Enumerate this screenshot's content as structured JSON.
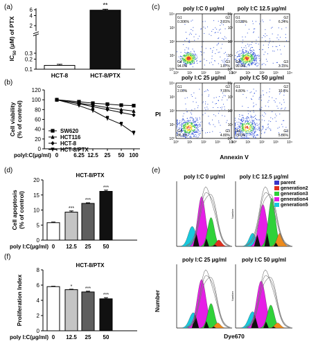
{
  "panels": {
    "a": {
      "letter": "(a)"
    },
    "b": {
      "letter": "(b)"
    },
    "c": {
      "letter": "(c)"
    },
    "d": {
      "letter": "(d)"
    },
    "e": {
      "letter": "(e)"
    },
    "f": {
      "letter": "(f)"
    }
  },
  "colors": {
    "dot_blue": "#2a4ed8",
    "dot_green": "#3fc34a",
    "dot_yellow": "#f2e82a",
    "dot_red": "#e23a2a",
    "gray_bar": "#c4c4c4",
    "dark_bar": "#5e5e5e",
    "black": "#111111",
    "purple": "#3a35c8",
    "red_hist": "#e0301f",
    "magenta": "#e61ee6",
    "green": "#2fd13a",
    "orange": "#ee8b1c",
    "cyan": "#17c9dd"
  },
  "chart_data": [
    {
      "panel": "a",
      "type": "bar",
      "categories": [
        "HCT-8",
        "HCT-8/PTX"
      ],
      "values": [
        0.13,
        5.8
      ],
      "error": [
        0.01,
        0.4
      ],
      "fills": [
        "#ffffff",
        "#111111"
      ],
      "significance": [
        "",
        "**"
      ],
      "ylabel_parts": {
        "pre": "IC",
        "sub": "50",
        "post": " (μM) of PTX"
      },
      "yscale": "log",
      "yticks": [
        "0.1",
        "0.2",
        "0.3",
        "2",
        "4",
        "6"
      ],
      "ylim": [
        0.1,
        6.6
      ]
    },
    {
      "panel": "b",
      "type": "line",
      "x": [
        "0",
        "6.25",
        "12.5",
        "25",
        "50",
        "100"
      ],
      "xlabel": "polyI:C(μg/ml)",
      "ylabel": [
        "Cell viability",
        "(% of control)"
      ],
      "ylim": [
        0,
        120
      ],
      "yticks": [
        "0",
        "20",
        "40",
        "60",
        "80",
        "100",
        "120"
      ],
      "series": [
        {
          "name": "SW620",
          "marker": "square",
          "values": [
            100,
            96,
            93,
            91,
            89,
            88
          ]
        },
        {
          "name": "HCT116",
          "marker": "triangle-up",
          "values": [
            100,
            93,
            89,
            84,
            80,
            77
          ]
        },
        {
          "name": "HCT-8",
          "marker": "diamond",
          "values": [
            100,
            92,
            86,
            80,
            74,
            69
          ]
        },
        {
          "name": "HCT-8/PTX",
          "marker": "triangle-down",
          "values": [
            100,
            88,
            78,
            62,
            50,
            32
          ]
        }
      ],
      "legend": "inside-left"
    },
    {
      "panel": "c",
      "type": "scatter",
      "xlabel": "Annexin V",
      "ylabel": "PI",
      "axis_ticks": [
        "10⁰",
        "10¹",
        "10²",
        "10³",
        "10⁴"
      ],
      "plots": [
        {
          "title": "poly I:C 0 μg/ml",
          "G1": "G1",
          "G1v": "0.306%",
          "G2": "G2",
          "G2v": "2.81%",
          "G3": "G3",
          "G3v": "1.87%",
          "G4": "G4",
          "G4v": "94.0%"
        },
        {
          "title": "poly I:C 12.5 μg/ml",
          "G1": "G1",
          "G1v": "0.529%",
          "G2": "G2",
          "G2v": "6.24%",
          "G3": "G3",
          "G3v": "3.15%",
          "G4": "G4",
          "G4v": "90.0%"
        },
        {
          "title": "poly I:C  25 μg/ml",
          "G1": "G1",
          "G1v": "2.00%",
          "G2": "G2",
          "G2v": "7.05%",
          "G3": "G3",
          "G3v": "4.80%",
          "G4": "G4",
          "G4v": "86.1%"
        },
        {
          "title": "poly I:C 50 μg/ml",
          "G1": "G1",
          "G1v": "4.80%",
          "G2": "G2",
          "G2v": "10.6%",
          "G3": "G3",
          "G3v": "5.86%",
          "G4": "G4",
          "G4v": "79.0%"
        }
      ]
    },
    {
      "panel": "d",
      "type": "bar",
      "title": "HCT-8/PTX",
      "categories": [
        "0",
        "12.5",
        "25",
        "50"
      ],
      "values": [
        5.8,
        9.3,
        12.2,
        16.2
      ],
      "error": [
        0.2,
        0.4,
        0.2,
        0.4
      ],
      "fills": [
        "#ffffff",
        "#c4c4c4",
        "#5e5e5e",
        "#111111"
      ],
      "significance": [
        "",
        "***",
        "***",
        "***"
      ],
      "xlabel": "poly I:C(μg/ml)",
      "ylabel": [
        "Cell apoptosis",
        "(% of control)"
      ],
      "ylim": [
        0,
        20
      ],
      "yticks": [
        "0",
        "5",
        "10",
        "15",
        "20"
      ]
    },
    {
      "panel": "e",
      "type": "area",
      "xlabel": "Dye670",
      "ylabel": "Number",
      "mini_ylabel": "Number",
      "legend": [
        {
          "name": "parent",
          "color": "#3a35c8"
        },
        {
          "name": "generation2",
          "color": "#e0301f"
        },
        {
          "name": "generation3",
          "color": "#2fd13a"
        },
        {
          "name": "generation4",
          "color": "#e61ee6"
        },
        {
          "name": "generation5",
          "color": "#17c9dd"
        }
      ],
      "plots": [
        {
          "title": "poly I:C 0 μg/ml"
        },
        {
          "title": "poly I:C 12.5 μg/ml"
        },
        {
          "title": "poly I:C  25 μg/ml"
        },
        {
          "title": "poly I:C 50 μg/ml"
        }
      ]
    },
    {
      "panel": "f",
      "type": "bar",
      "title": "HCT-8/PTX",
      "categories": [
        "0",
        "12.5",
        "25",
        "50"
      ],
      "values": [
        5.8,
        5.4,
        5.1,
        4.2
      ],
      "error": [
        0.05,
        0.06,
        0.1,
        0.15
      ],
      "fills": [
        "#ffffff",
        "#c4c4c4",
        "#5e5e5e",
        "#111111"
      ],
      "significance": [
        "",
        "*",
        "***",
        "***"
      ],
      "xlabel": "poly I:C(μg/ml)",
      "ylabel": [
        "Proliferation Index"
      ],
      "ylim": [
        0,
        8
      ],
      "yticks": [
        "0",
        "2",
        "4",
        "6",
        "8"
      ]
    }
  ]
}
